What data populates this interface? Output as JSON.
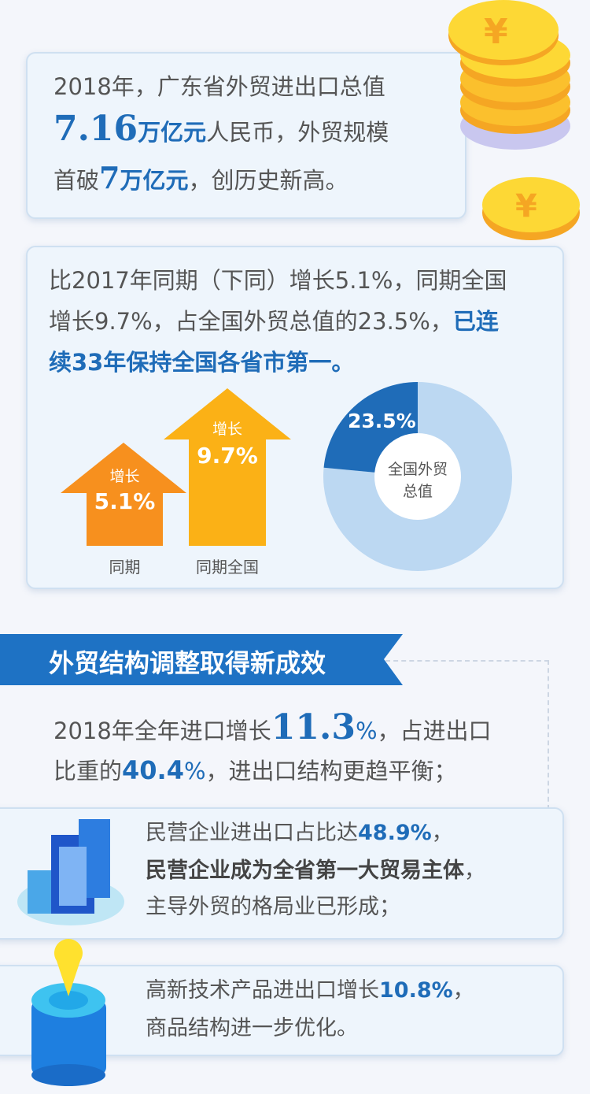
{
  "card1": {
    "line1": "2018年，广东省外贸进出口总值",
    "value": "7.16",
    "unit": "万亿元",
    "line2_rest": "人民币，外贸规模",
    "line3_pre": "首破",
    "line3_num": "7",
    "line3_unit": "万亿元",
    "line3_rest": "，创历史新高。"
  },
  "card2": {
    "line1": "比2017年同期（下同）增长5.1%，同期全国",
    "line2_pre": "增长9.7%，占全国外贸总值的23.5%，",
    "line2_bold": "已连",
    "line3_bold": "续33年保持全国各省市第一。",
    "arrows": [
      {
        "top": "增长",
        "value": "5.1%",
        "label": "同期",
        "color": "#f7901e"
      },
      {
        "top": "增长",
        "value": "9.7%",
        "label": "同期全国",
        "color": "#fbb116"
      }
    ],
    "donut": {
      "value": "23.5%",
      "fraction": 0.235,
      "center_line1": "全国外贸",
      "center_line2": "总值",
      "colors": {
        "part": "#1f6cb8",
        "rest": "#bcd8f2"
      }
    }
  },
  "section": {
    "title": "外贸结构调整取得新成效"
  },
  "import": {
    "pre": "2018年全年进口增长",
    "num": "11.3",
    "pct": "%",
    "post": "，占进出口",
    "l2_pre": "比重的",
    "l2_num": "40.4",
    "l2_pct": "%",
    "l2_post": "，进出口结构更趋平衡；"
  },
  "private": {
    "l1_pre": "民营企业进出口占比达",
    "l1_num": "48.9%",
    "l1_post": "，",
    "l2": "民营企业成为全省第一大贸易主体",
    "l2_post": "，",
    "l3": "主导外贸的格局业已形成；"
  },
  "hitech": {
    "l1_pre": "高新技术产品进出口增长",
    "l1_num": "10.8%",
    "l1_post": "，",
    "l2": "商品结构进一步优化。"
  },
  "colors": {
    "accent": "#1f6cb8",
    "banner": "#1e72c4",
    "coin": "#fbc02d"
  }
}
